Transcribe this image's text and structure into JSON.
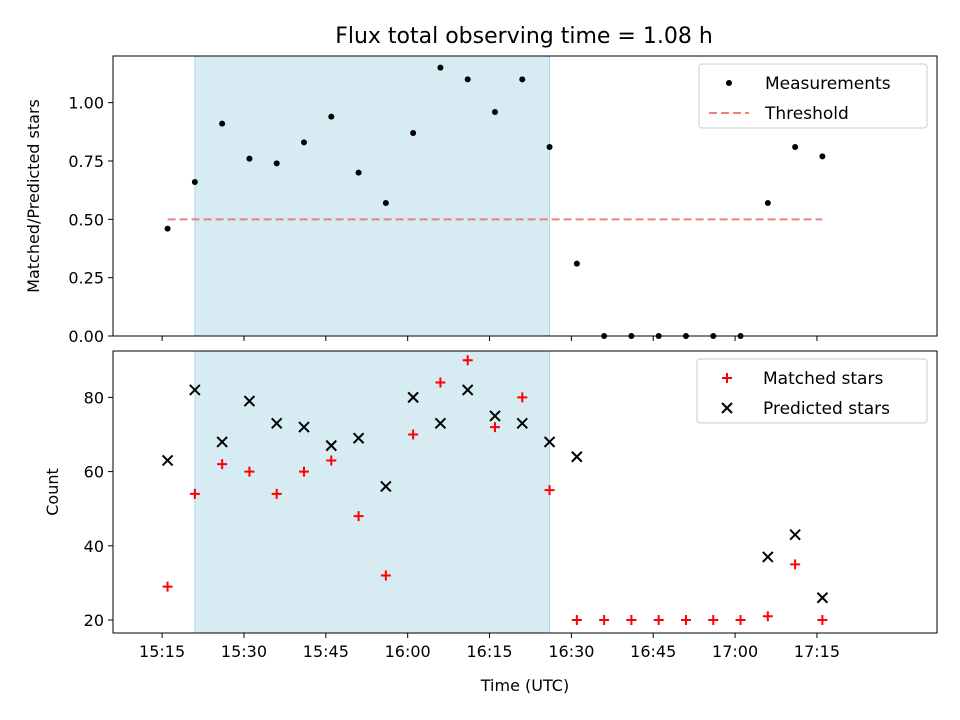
{
  "title": "Flux total observing time = 1.08 h",
  "colors": {
    "shade": "#add8e6",
    "threshold": "#f08080",
    "matched": "#ff0000",
    "predicted": "#000000",
    "measurement": "#000000"
  },
  "chart_data": [
    {
      "type": "scatter",
      "ylabel": "Matched/Predicted stars",
      "ylim": [
        0,
        1.2
      ],
      "yticks": [
        0.0,
        0.25,
        0.5,
        0.75,
        1.0
      ],
      "ytick_labels": [
        "0.00",
        "0.25",
        "0.50",
        "0.75",
        "1.00"
      ],
      "xlim_minutes": [
        906,
        1057
      ],
      "shaded_interval_minutes": [
        921,
        986
      ],
      "legend": [
        "Measurements",
        "Threshold"
      ],
      "legend_position": "top-right",
      "threshold": {
        "name": "Threshold",
        "x": [
          916,
          1036
        ],
        "y": 0.5
      },
      "series": [
        {
          "name": "Measurements",
          "x": [
            916,
            921,
            926,
            931,
            936,
            941,
            946,
            951,
            956,
            961,
            966,
            971,
            976,
            981,
            986,
            991,
            996,
            1001,
            1006,
            1011,
            1016,
            1021,
            1026,
            1031,
            1036
          ],
          "values": [
            0.46,
            0.66,
            0.91,
            0.76,
            0.74,
            0.83,
            0.94,
            0.7,
            0.57,
            0.87,
            1.15,
            1.1,
            0.96,
            1.1,
            0.81,
            0.31,
            0.0,
            0.0,
            0.0,
            0.0,
            0.0,
            0.0,
            0.57,
            0.81,
            0.77
          ]
        }
      ]
    },
    {
      "type": "scatter",
      "xlabel": "Time (UTC)",
      "ylabel": "Count",
      "ylim": [
        16.5,
        92.5
      ],
      "yticks": [
        20,
        40,
        60,
        80
      ],
      "ytick_labels": [
        "20",
        "40",
        "60",
        "80"
      ],
      "xticks_minutes": [
        915,
        930,
        945,
        960,
        975,
        990,
        1005,
        1020,
        1035
      ],
      "xtick_labels": [
        "15:15",
        "15:30",
        "15:45",
        "16:00",
        "16:15",
        "16:30",
        "16:45",
        "17:00",
        "17:15"
      ],
      "xlim_minutes": [
        906,
        1057
      ],
      "shaded_interval_minutes": [
        921,
        986
      ],
      "legend": [
        "Matched stars",
        "Predicted stars"
      ],
      "legend_position": "top-right",
      "series": [
        {
          "name": "Matched stars",
          "x": [
            916,
            921,
            926,
            931,
            936,
            941,
            946,
            951,
            956,
            961,
            966,
            971,
            976,
            981,
            986,
            991,
            996,
            1001,
            1006,
            1011,
            1016,
            1021,
            1026,
            1031,
            1036
          ],
          "values": [
            29,
            54,
            62,
            60,
            54,
            60,
            63,
            48,
            32,
            70,
            84,
            90,
            72,
            80,
            55,
            20,
            20,
            20,
            20,
            20,
            20,
            20,
            21,
            35,
            20
          ]
        },
        {
          "name": "Predicted stars",
          "x": [
            916,
            921,
            926,
            931,
            936,
            941,
            946,
            951,
            956,
            961,
            966,
            971,
            976,
            981,
            986,
            991,
            1026,
            1031,
            1036
          ],
          "values": [
            63,
            82,
            68,
            79,
            73,
            72,
            67,
            69,
            56,
            80,
            73,
            82,
            75,
            73,
            68,
            64,
            37,
            43,
            26
          ]
        }
      ]
    }
  ]
}
